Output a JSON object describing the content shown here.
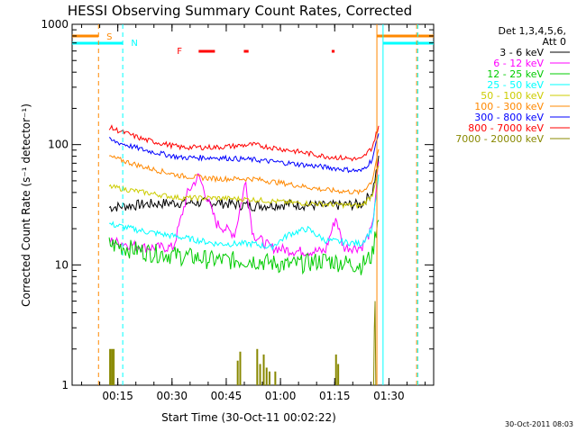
{
  "chart_data": {
    "type": "line",
    "title": "HESSI Observing Summary Count Rates, Corrected",
    "xlabel": "Start Time (30-Oct-11 00:02:22)",
    "ylabel": "Corrected Count Rate (s⁻¹ detector⁻¹)",
    "yscale": "log",
    "ylim": [
      1,
      1000
    ],
    "xlim_minutes": [
      0,
      100
    ],
    "x_ticks": [
      "00:15",
      "00:30",
      "00:45",
      "01:00",
      "01:15",
      "01:30"
    ],
    "y_ticks": [
      "1",
      "10",
      "100",
      "1000"
    ],
    "legend": {
      "header": [
        "Det 1,3,4,5,6,",
        "Att 0"
      ],
      "placement": "right"
    },
    "series": [
      {
        "name": "3 - 6 keV",
        "color": "#000000",
        "x": [
          5,
          10,
          20,
          30,
          40,
          50,
          60,
          70,
          80,
          83,
          85
        ],
        "values": [
          null,
          30,
          32,
          33,
          33,
          31,
          32,
          31,
          32,
          40,
          80
        ]
      },
      {
        "name": "6 - 12 keV",
        "color": "#ff00ff",
        "x": [
          5,
          10,
          20,
          28,
          32,
          35,
          40,
          45,
          48,
          50,
          55,
          62,
          70,
          73,
          75,
          80,
          83,
          85
        ],
        "values": [
          null,
          16,
          14,
          14,
          40,
          55,
          22,
          18,
          50,
          18,
          14,
          13,
          13,
          25,
          14,
          14,
          20,
          80
        ]
      },
      {
        "name": "12 - 25 keV",
        "color": "#00cc00",
        "x": [
          5,
          10,
          20,
          30,
          40,
          50,
          60,
          70,
          80,
          83,
          85
        ],
        "values": [
          null,
          15,
          13,
          12,
          11,
          11,
          10,
          11,
          10,
          12,
          30
        ]
      },
      {
        "name": "25 - 50 keV",
        "color": "#00ffff",
        "x": [
          5,
          10,
          20,
          30,
          40,
          50,
          55,
          60,
          65,
          70,
          80,
          83,
          85
        ],
        "values": [
          null,
          22,
          19,
          17,
          15,
          15,
          14,
          18,
          20,
          16,
          15,
          20,
          60
        ]
      },
      {
        "name": "50 - 100 keV",
        "color": "#cccc00",
        "x": [
          5,
          10,
          20,
          30,
          40,
          50,
          60,
          70,
          80,
          83,
          85
        ],
        "values": [
          null,
          45,
          40,
          36,
          36,
          35,
          33,
          32,
          31,
          38,
          70
        ]
      },
      {
        "name": "100 - 300 keV",
        "color": "#ff8800",
        "x": [
          5,
          10,
          20,
          30,
          40,
          50,
          60,
          70,
          80,
          83,
          85
        ],
        "values": [
          null,
          80,
          65,
          55,
          52,
          52,
          47,
          42,
          40,
          50,
          100
        ]
      },
      {
        "name": "300 - 800 keV",
        "color": "#0000ff",
        "x": [
          5,
          10,
          20,
          30,
          40,
          50,
          60,
          70,
          80,
          83,
          85
        ],
        "values": [
          null,
          110,
          90,
          78,
          78,
          75,
          70,
          65,
          60,
          75,
          130
        ]
      },
      {
        "name": "800 - 7000 keV",
        "color": "#ff0000",
        "x": [
          5,
          10,
          20,
          30,
          40,
          50,
          60,
          70,
          80,
          83,
          85
        ],
        "values": [
          null,
          140,
          110,
          95,
          95,
          100,
          90,
          80,
          75,
          95,
          150
        ]
      },
      {
        "name": "7000 - 20000 keV",
        "color": "#888800",
        "x": [],
        "values": []
      }
    ],
    "flags": [
      {
        "label": "S",
        "color": "#ff8800"
      },
      {
        "label": "N",
        "color": "#00ffff"
      },
      {
        "label": "F",
        "color": "#ff0000"
      }
    ]
  },
  "footer": {
    "timestamp": "30-Oct-2011 08:03"
  }
}
